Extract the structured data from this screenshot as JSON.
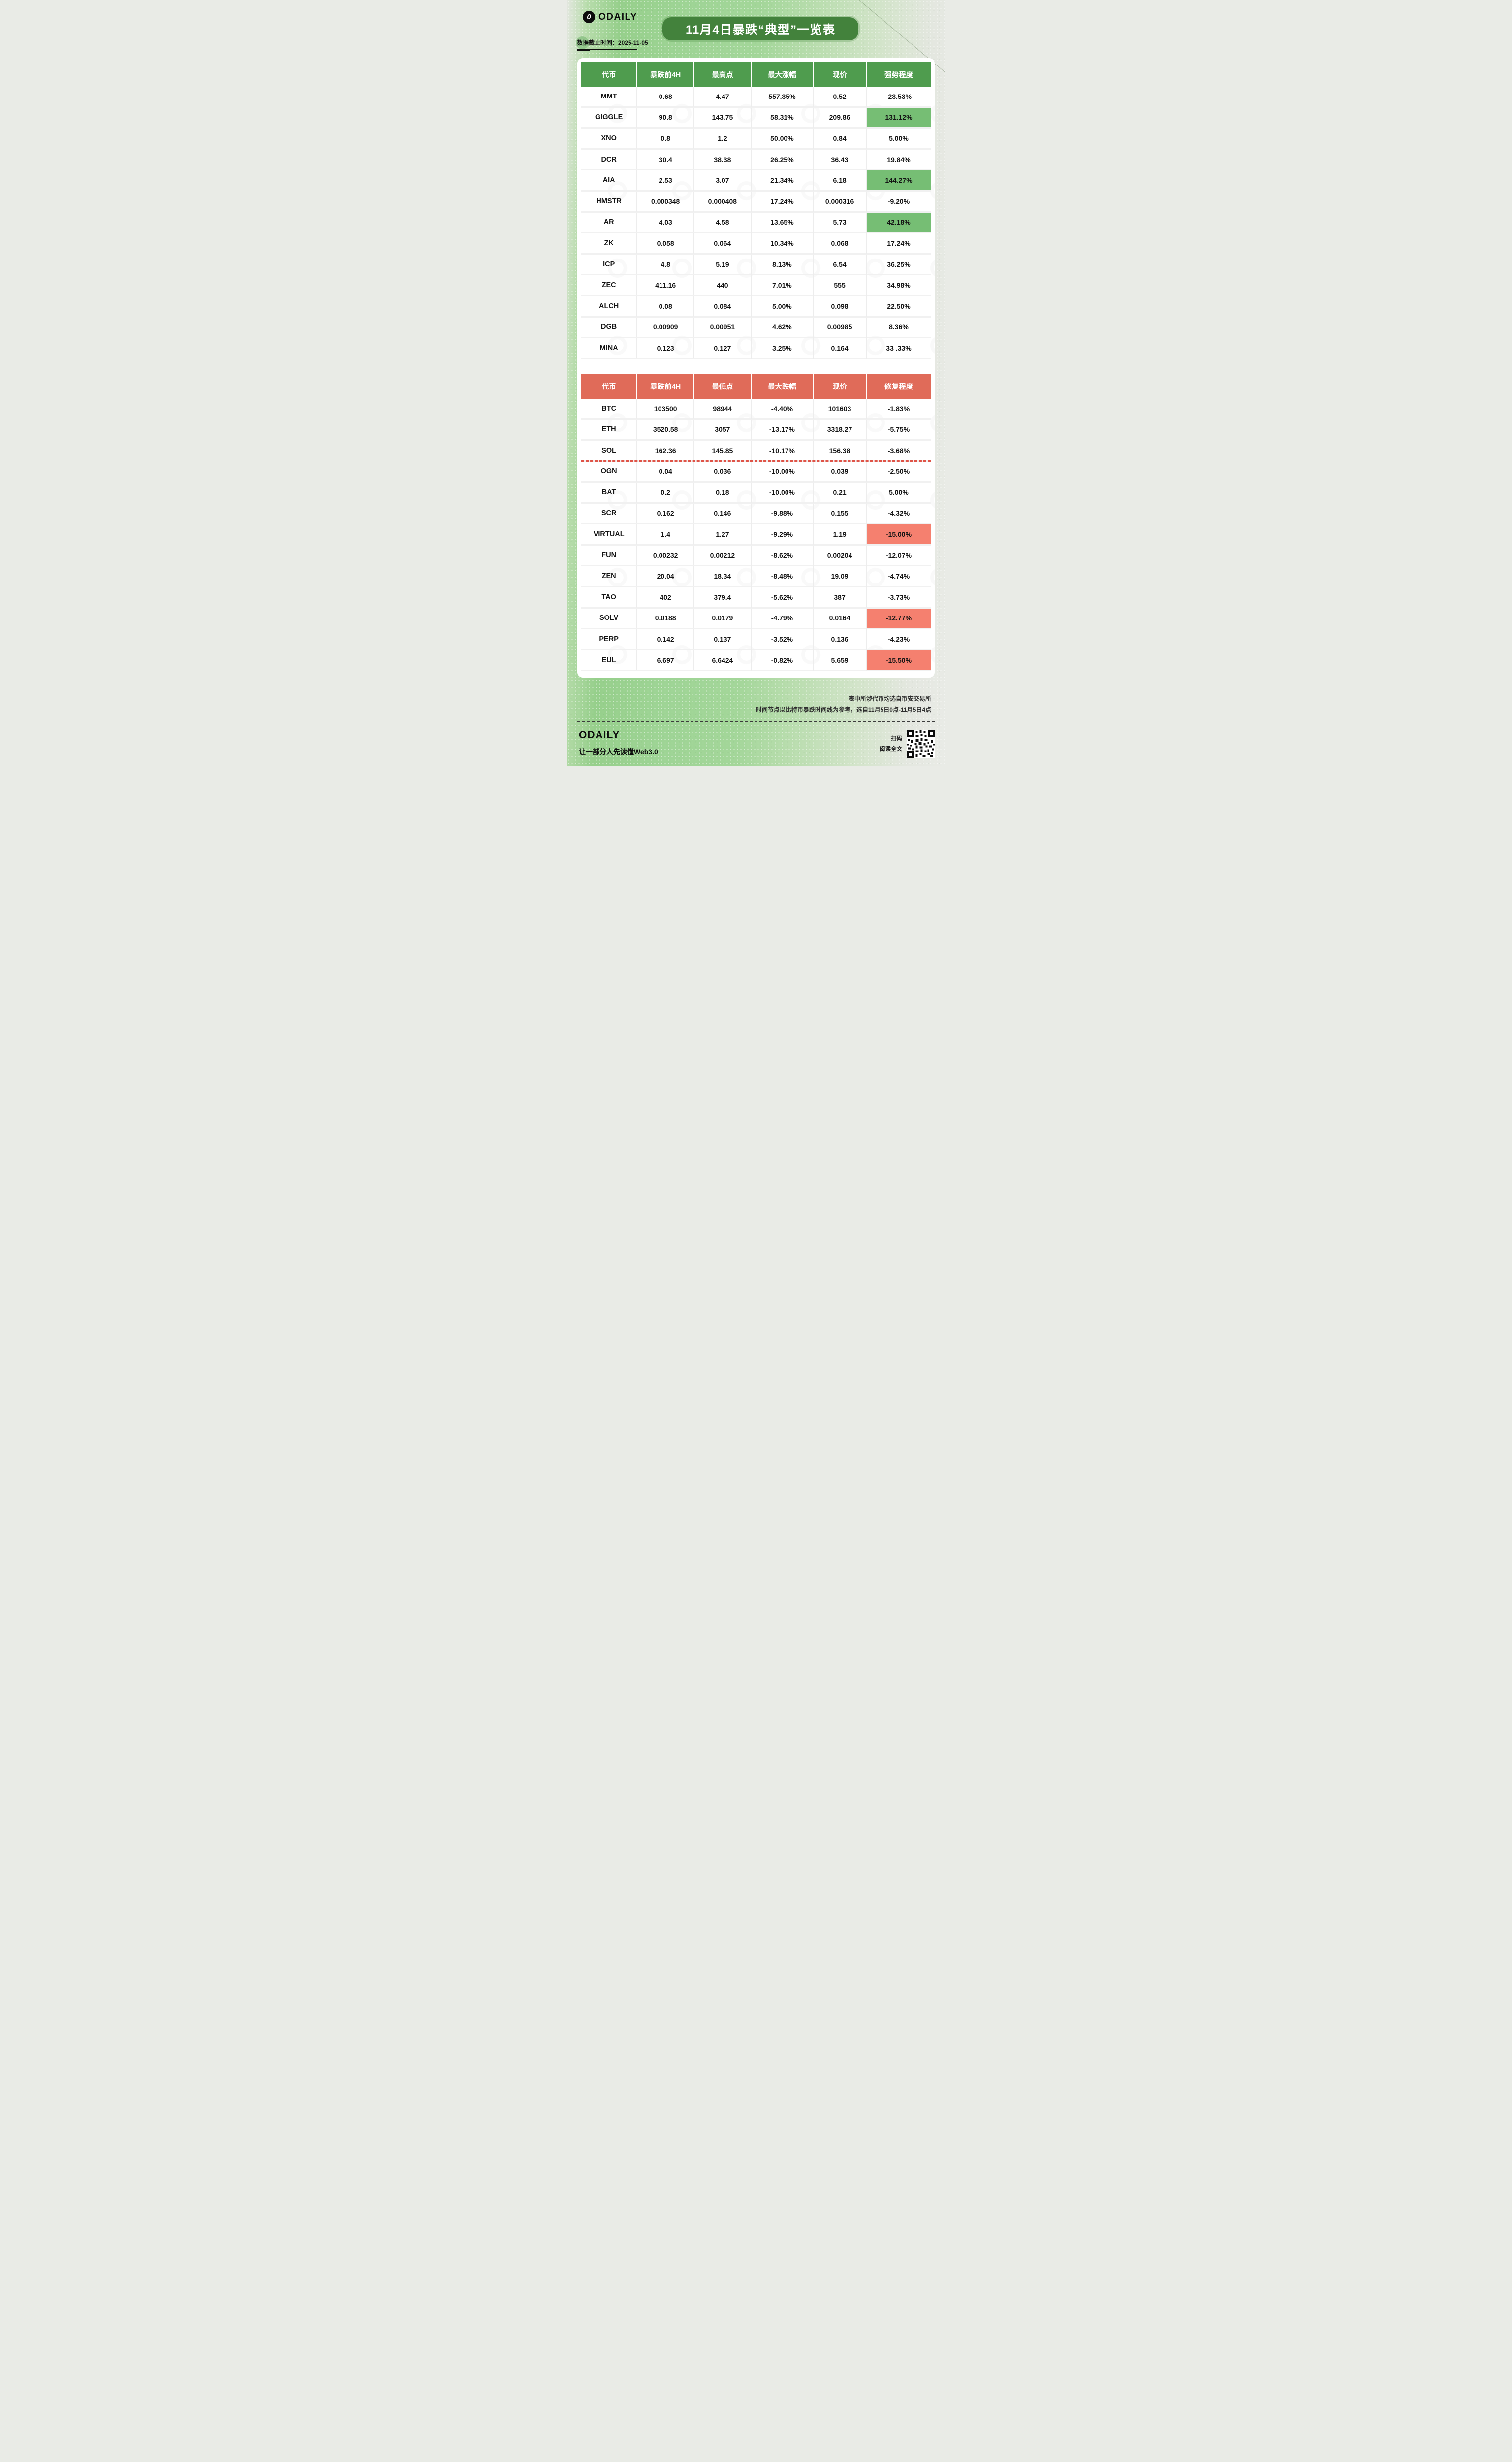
{
  "header": {
    "brand": "ODAILY",
    "brand_mark": "0",
    "title": "11月4日暴跌“典型”一览表",
    "data_cutoff": "数据截止时间：2025-11-05"
  },
  "colors": {
    "title_bg": "#43823c",
    "pump_header": "#4f9c4e",
    "pump_highlight": "#76be74",
    "dump_header": "#e06b59",
    "dump_highlight": "#f5806f",
    "dashed_divider_red": "#df5448"
  },
  "chart_data": [
    {
      "type": "table",
      "theme": "green-pump",
      "columns": [
        "代币",
        "暴跌前4H",
        "最高点",
        "最大涨幅",
        "现价",
        "强势程度"
      ],
      "rows": [
        {
          "cells": [
            "MMT",
            "0.68",
            "4.47",
            "557.35%",
            "0.52",
            "-23.53%"
          ],
          "highlight": false
        },
        {
          "cells": [
            "GIGGLE",
            "90.8",
            "143.75",
            "58.31%",
            "209.86",
            "131.12%"
          ],
          "highlight": true
        },
        {
          "cells": [
            "XNO",
            "0.8",
            "1.2",
            "50.00%",
            "0.84",
            "5.00%"
          ],
          "highlight": false
        },
        {
          "cells": [
            "DCR",
            "30.4",
            "38.38",
            "26.25%",
            "36.43",
            "19.84%"
          ],
          "highlight": false
        },
        {
          "cells": [
            "AIA",
            "2.53",
            "3.07",
            "21.34%",
            "6.18",
            "144.27%"
          ],
          "highlight": true
        },
        {
          "cells": [
            "HMSTR",
            "0.000348",
            "0.000408",
            "17.24%",
            "0.000316",
            "-9.20%"
          ],
          "highlight": false
        },
        {
          "cells": [
            "AR",
            "4.03",
            "4.58",
            "13.65%",
            "5.73",
            "42.18%"
          ],
          "highlight": true
        },
        {
          "cells": [
            "ZK",
            "0.058",
            "0.064",
            "10.34%",
            "0.068",
            "17.24%"
          ],
          "highlight": false
        },
        {
          "cells": [
            "ICP",
            "4.8",
            "5.19",
            "8.13%",
            "6.54",
            "36.25%"
          ],
          "highlight": false
        },
        {
          "cells": [
            "ZEC",
            "411.16",
            "440",
            "7.01%",
            "555",
            "34.98%"
          ],
          "highlight": false
        },
        {
          "cells": [
            "ALCH",
            "0.08",
            "0.084",
            "5.00%",
            "0.098",
            "22.50%"
          ],
          "highlight": false
        },
        {
          "cells": [
            "DGB",
            "0.00909",
            "0.00951",
            "4.62%",
            "0.00985",
            "8.36%"
          ],
          "highlight": false
        },
        {
          "cells": [
            "MINA",
            "0.123",
            "0.127",
            "3.25%",
            "0.164",
            "33 .33%"
          ],
          "highlight": false
        }
      ]
    },
    {
      "type": "table",
      "theme": "red-dump",
      "columns": [
        "代币",
        "暴跌前4H",
        "最低点",
        "最大跌幅",
        "现价",
        "修复程度"
      ],
      "rows": [
        {
          "cells": [
            "BTC",
            "103500",
            "98944",
            "-4.40%",
            "101603",
            "-1.83%"
          ],
          "highlight": false
        },
        {
          "cells": [
            "ETH",
            "3520.58",
            "3057",
            "-13.17%",
            "3318.27",
            "-5.75%"
          ],
          "highlight": false
        },
        {
          "cells": [
            "SOL",
            "162.36",
            "145.85",
            "-10.17%",
            "156.38",
            "-3.68%"
          ],
          "highlight": false,
          "divider_below": true
        },
        {
          "cells": [
            "OGN",
            "0.04",
            "0.036",
            "-10.00%",
            "0.039",
            "-2.50%"
          ],
          "highlight": false
        },
        {
          "cells": [
            "BAT",
            "0.2",
            "0.18",
            "-10.00%",
            "0.21",
            "5.00%"
          ],
          "highlight": false
        },
        {
          "cells": [
            "SCR",
            "0.162",
            "0.146",
            "-9.88%",
            "0.155",
            "-4.32%"
          ],
          "highlight": false
        },
        {
          "cells": [
            "VIRTUAL",
            "1.4",
            "1.27",
            "-9.29%",
            "1.19",
            "-15.00%"
          ],
          "highlight": true
        },
        {
          "cells": [
            "FUN",
            "0.00232",
            "0.00212",
            "-8.62%",
            "0.00204",
            "-12.07%"
          ],
          "highlight": false
        },
        {
          "cells": [
            "ZEN",
            "20.04",
            "18.34",
            "-8.48%",
            "19.09",
            "-4.74%"
          ],
          "highlight": false
        },
        {
          "cells": [
            "TAO",
            "402",
            "379.4",
            "-5.62%",
            "387",
            "-3.73%"
          ],
          "highlight": false
        },
        {
          "cells": [
            "SOLV",
            "0.0188",
            "0.0179",
            "-4.79%",
            "0.0164",
            "-12.77%"
          ],
          "highlight": true
        },
        {
          "cells": [
            "PERP",
            "0.142",
            "0.137",
            "-3.52%",
            "0.136",
            "-4.23%"
          ],
          "highlight": false
        },
        {
          "cells": [
            "EUL",
            "6.697",
            "6.6424",
            "-0.82%",
            "5.659",
            "-15.50%"
          ],
          "highlight": true
        }
      ]
    }
  ],
  "footnotes": [
    "表中所涉代币均选自币安交易所",
    "时间节点以比特币暴跌时间线为参考，选自11月5日0点-11月5日4点"
  ],
  "footer": {
    "brand": "ODAILY",
    "tagline": "让一部分人先读懂Web3.0",
    "qr_caption_line1": "扫码",
    "qr_caption_line2": "阅读全文"
  }
}
